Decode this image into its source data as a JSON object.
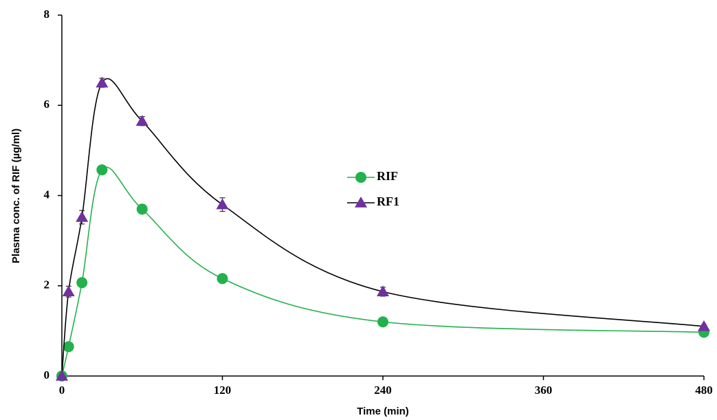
{
  "chart_data": {
    "type": "line",
    "x_label": "Time (min)",
    "y_label": "Plasma conc. of RIF (µg/ml)",
    "x": [
      0,
      5,
      15,
      30,
      60,
      120,
      240,
      480
    ],
    "series": [
      {
        "name": "RIF",
        "color": "#22b14c",
        "line_color": "#22b14c",
        "marker": "circle",
        "values": [
          0,
          0.65,
          2.07,
          4.57,
          3.7,
          2.16,
          1.2,
          0.97
        ],
        "errors": [
          0,
          0.03,
          0.08,
          0.05,
          0.1,
          0.05,
          0.04,
          0.03
        ]
      },
      {
        "name": "RF1",
        "color": "#7030a0",
        "line_color": "#000000",
        "marker": "triangle",
        "values": [
          0,
          1.87,
          3.52,
          6.5,
          5.65,
          3.8,
          1.87,
          1.1
        ],
        "errors": [
          0,
          0.12,
          0.15,
          0.1,
          0.1,
          0.15,
          0.1,
          0.04
        ]
      }
    ],
    "xlim": [
      0,
      480
    ],
    "xticks": [
      0,
      120,
      240,
      360,
      480
    ],
    "ylim": [
      0,
      8
    ],
    "yticks": [
      0,
      2,
      4,
      6,
      8
    ],
    "smooth": true,
    "legend": "center"
  }
}
